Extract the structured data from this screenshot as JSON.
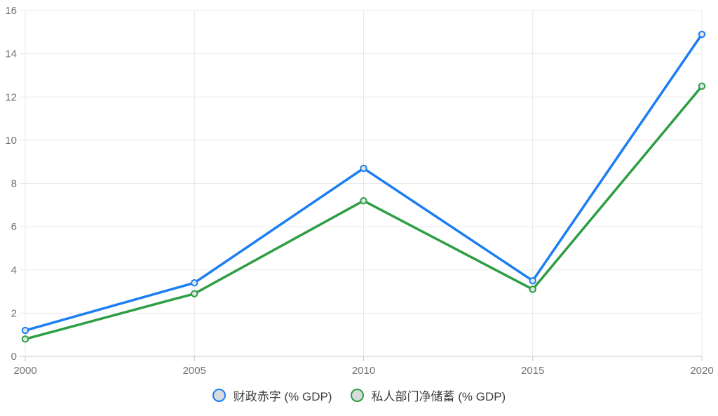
{
  "chart_data": {
    "type": "line",
    "title": "",
    "xlabel": "",
    "ylabel": "",
    "categories": [
      "2000",
      "2005",
      "2010",
      "2015",
      "2020"
    ],
    "series": [
      {
        "name": "财政赤字 (% GDP)",
        "values": [
          1.2,
          3.4,
          8.7,
          3.5,
          14.9
        ],
        "color": "#1b7ef2"
      },
      {
        "name": "私人部门净储蓄 (% GDP)",
        "values": [
          0.8,
          2.9,
          7.2,
          3.1,
          12.5
        ],
        "color": "#2e9e44"
      }
    ],
    "y_ticks": [
      0,
      2,
      4,
      6,
      8,
      10,
      12,
      14,
      16
    ],
    "ylim": [
      0,
      16
    ],
    "grid": true,
    "legend_position": "bottom",
    "colors": {
      "grid_line": "#e8e8e8",
      "axis_line": "#c9c9c9",
      "tick_label": "#737373",
      "legend_text": "#3f3f3f",
      "marker_fill": "#dfe3e6"
    }
  }
}
